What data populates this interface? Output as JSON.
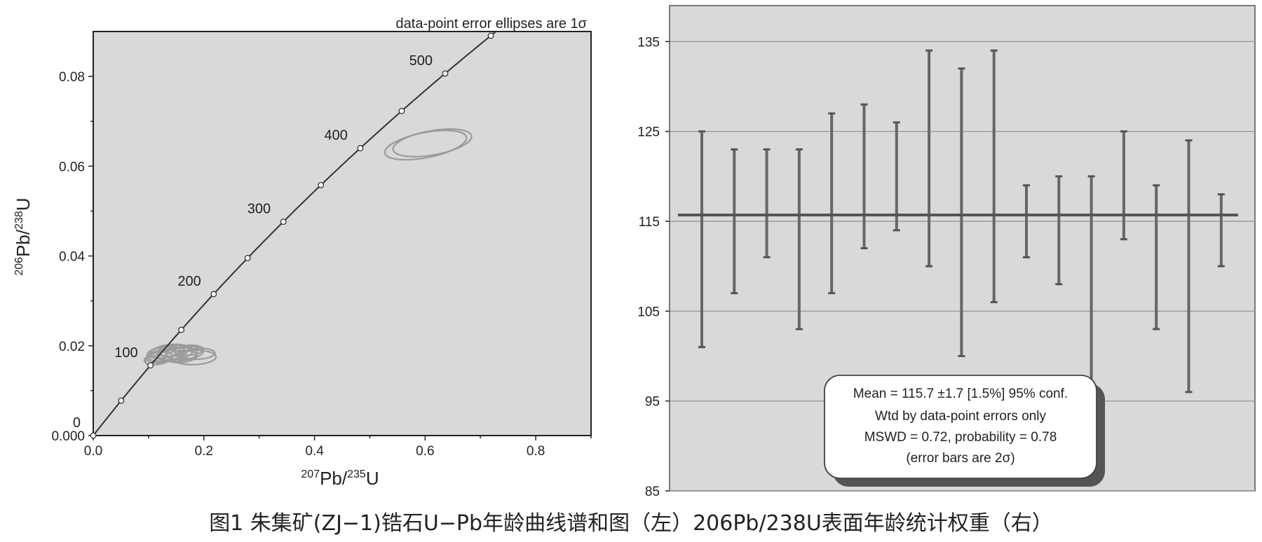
{
  "caption": "图1 朱集矿(ZJ−1)锆石U−Pb年龄曲线谱和图（左）206Pb/238U表面年龄统计权重（右）",
  "colors": {
    "plot_background": "#d9d9d9",
    "ellipse": "#9b9b9b",
    "error_bar": "#666666",
    "mean_line": "#555555"
  },
  "chart_data": [
    {
      "type": "scatter",
      "subtype": "concordia",
      "annotation": "data-point error ellipses are 1σ",
      "xlabel": {
        "sup": "207",
        "main": "Pb/",
        "sup2": "235",
        "main2": "U"
      },
      "ylabel": {
        "sup": "206",
        "main": "Pb/",
        "sup2": "238",
        "main2": "U"
      },
      "xlim": [
        0.0,
        0.9
      ],
      "ylim": [
        0.0,
        0.09
      ],
      "x_ticks": [
        {
          "v": 0.0,
          "label": "0.0"
        },
        {
          "v": 0.2,
          "label": "0.2"
        },
        {
          "v": 0.4,
          "label": "0.4"
        },
        {
          "v": 0.6,
          "label": "0.6"
        },
        {
          "v": 0.8,
          "label": "0.8"
        }
      ],
      "y_ticks": [
        {
          "v": 0.0,
          "label": "0.000"
        },
        {
          "v": 0.02,
          "label": "0.02"
        },
        {
          "v": 0.04,
          "label": "0.04"
        },
        {
          "v": 0.06,
          "label": "0.06"
        },
        {
          "v": 0.08,
          "label": "0.08"
        }
      ],
      "concordia_ages_ma": [
        0,
        50,
        100,
        150,
        200,
        250,
        300,
        350,
        400,
        450,
        500,
        550
      ],
      "age_labels": [
        {
          "age": 0,
          "text": "0"
        },
        {
          "age": 100,
          "text": "100"
        },
        {
          "age": 200,
          "text": "200"
        },
        {
          "age": 300,
          "text": "300"
        },
        {
          "age": 400,
          "text": "400"
        },
        {
          "age": 500,
          "text": "500"
        }
      ],
      "ellipses": [
        {
          "x": 0.132,
          "y": 0.0182,
          "rx": 0.035,
          "ry": 0.0016,
          "angle_deg": 6
        },
        {
          "x": 0.142,
          "y": 0.0186,
          "rx": 0.038,
          "ry": 0.0017,
          "angle_deg": 4
        },
        {
          "x": 0.126,
          "y": 0.0177,
          "rx": 0.03,
          "ry": 0.0014,
          "angle_deg": 8
        },
        {
          "x": 0.152,
          "y": 0.0181,
          "rx": 0.036,
          "ry": 0.0015,
          "angle_deg": 3
        },
        {
          "x": 0.118,
          "y": 0.0172,
          "rx": 0.026,
          "ry": 0.0013,
          "angle_deg": 10
        },
        {
          "x": 0.165,
          "y": 0.0184,
          "rx": 0.034,
          "ry": 0.0014,
          "angle_deg": 5
        },
        {
          "x": 0.182,
          "y": 0.0174,
          "rx": 0.04,
          "ry": 0.0016,
          "angle_deg": 2
        },
        {
          "x": 0.137,
          "y": 0.0179,
          "rx": 0.022,
          "ry": 0.0011,
          "angle_deg": 7
        },
        {
          "x": 0.145,
          "y": 0.0189,
          "rx": 0.028,
          "ry": 0.0012,
          "angle_deg": 5
        },
        {
          "x": 0.173,
          "y": 0.019,
          "rx": 0.026,
          "ry": 0.0011,
          "angle_deg": 4
        },
        {
          "x": 0.112,
          "y": 0.0168,
          "rx": 0.018,
          "ry": 0.001,
          "angle_deg": 12
        },
        {
          "x": 0.128,
          "y": 0.0185,
          "rx": 0.03,
          "ry": 0.0012,
          "angle_deg": 6
        },
        {
          "x": 0.158,
          "y": 0.0176,
          "rx": 0.03,
          "ry": 0.0013,
          "angle_deg": 4
        },
        {
          "x": 0.19,
          "y": 0.0182,
          "rx": 0.03,
          "ry": 0.0012,
          "angle_deg": 3
        },
        {
          "x": 0.601,
          "y": 0.0647,
          "rx": 0.075,
          "ry": 0.0028,
          "angle_deg": 11
        },
        {
          "x": 0.613,
          "y": 0.0652,
          "rx": 0.072,
          "ry": 0.0027,
          "angle_deg": 10
        }
      ]
    },
    {
      "type": "bar",
      "subtype": "error-bar",
      "ylim": [
        85,
        139
      ],
      "y_ticks": [
        85,
        95,
        105,
        115,
        125,
        135
      ],
      "grid": true,
      "mean": 115.7,
      "ranges": [
        {
          "low": 101,
          "high": 125
        },
        {
          "low": 107,
          "high": 123
        },
        {
          "low": 111,
          "high": 123
        },
        {
          "low": 103,
          "high": 123
        },
        {
          "low": 107,
          "high": 127
        },
        {
          "low": 112,
          "high": 128
        },
        {
          "low": 114,
          "high": 126
        },
        {
          "low": 110,
          "high": 134
        },
        {
          "low": 100,
          "high": 132
        },
        {
          "low": 106,
          "high": 134
        },
        {
          "low": 111,
          "high": 119
        },
        {
          "low": 108,
          "high": 120
        },
        {
          "low": 97,
          "high": 120
        },
        {
          "low": 113,
          "high": 125
        },
        {
          "low": 103,
          "high": 119
        },
        {
          "low": 96,
          "high": 124
        },
        {
          "low": 110,
          "high": 118
        }
      ],
      "info_box": {
        "line1": "Mean = 115.7 ±1.7  [1.5%]  95% conf.",
        "line2": "Wtd by data-point errors only",
        "line3": "MSWD = 0.72, probability = 0.78",
        "line4": "(error bars are 2σ)"
      }
    }
  ]
}
